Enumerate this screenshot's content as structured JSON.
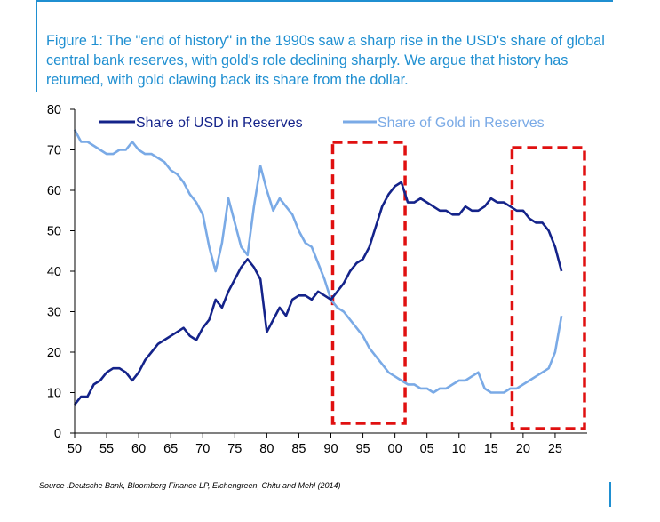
{
  "title": "Figure 1: The \"end of history\" in the 1990s saw a sharp rise in the USD's share of global central bank reserves, with gold's role declining sharply. We argue that history has returned, with gold clawing back its share from the dollar.",
  "source": "Source :Deutsche Bank, Bloomberg Finance LP, Eichengreen, Chitu and Mehl (2014)",
  "colors": {
    "title": "#1f8fd1",
    "usd": "#14238a",
    "gold": "#7aaae6",
    "highlight": "#e01010"
  },
  "chart_data": {
    "type": "line",
    "xlim": [
      1950,
      2030
    ],
    "ylim": [
      0,
      80
    ],
    "x_ticks": [
      1950,
      1955,
      1960,
      1965,
      1970,
      1975,
      1980,
      1985,
      1990,
      1995,
      2000,
      2005,
      2010,
      2015,
      2020,
      2025
    ],
    "x_tick_labels": [
      "50",
      "55",
      "60",
      "65",
      "70",
      "75",
      "80",
      "85",
      "90",
      "95",
      "00",
      "05",
      "10",
      "15",
      "20",
      "25"
    ],
    "y_ticks": [
      0,
      10,
      20,
      30,
      40,
      50,
      60,
      70,
      80
    ],
    "y_tick_labels": [
      "0",
      "10",
      "20",
      "30",
      "40",
      "50",
      "60",
      "70",
      "80"
    ],
    "grid": false,
    "legend_position": "top",
    "highlight_periods": [
      [
        1990,
        2002
      ],
      [
        2018,
        2030
      ]
    ],
    "series": [
      {
        "name": "Share of USD in Reserves",
        "x": [
          1950,
          1951,
          1952,
          1953,
          1954,
          1955,
          1956,
          1957,
          1958,
          1959,
          1960,
          1961,
          1962,
          1963,
          1964,
          1965,
          1966,
          1967,
          1968,
          1969,
          1970,
          1971,
          1972,
          1973,
          1974,
          1975,
          1976,
          1977,
          1978,
          1979,
          1980,
          1981,
          1982,
          1983,
          1984,
          1985,
          1986,
          1987,
          1988,
          1989,
          1990,
          1991,
          1992,
          1993,
          1994,
          1995,
          1996,
          1997,
          1998,
          1999,
          2000,
          2001,
          2002,
          2003,
          2004,
          2005,
          2006,
          2007,
          2008,
          2009,
          2010,
          2011,
          2012,
          2013,
          2014,
          2015,
          2016,
          2017,
          2018,
          2019,
          2020,
          2021,
          2022,
          2023,
          2024,
          2025,
          2026
        ],
        "values": [
          7,
          9,
          9,
          12,
          13,
          15,
          16,
          16,
          15,
          13,
          15,
          18,
          20,
          22,
          23,
          24,
          25,
          26,
          24,
          23,
          26,
          28,
          33,
          31,
          35,
          38,
          41,
          43,
          41,
          38,
          25,
          28,
          31,
          29,
          33,
          34,
          34,
          33,
          35,
          34,
          33,
          35,
          37,
          40,
          42,
          43,
          46,
          51,
          56,
          59,
          61,
          62,
          57,
          57,
          58,
          57,
          56,
          55,
          55,
          54,
          54,
          56,
          55,
          55,
          56,
          58,
          57,
          57,
          56,
          55,
          55,
          53,
          52,
          52,
          50,
          46,
          40
        ]
      },
      {
        "name": "Share of Gold in Reserves",
        "x": [
          1950,
          1951,
          1952,
          1953,
          1954,
          1955,
          1956,
          1957,
          1958,
          1959,
          1960,
          1961,
          1962,
          1963,
          1964,
          1965,
          1966,
          1967,
          1968,
          1969,
          1970,
          1971,
          1972,
          1973,
          1974,
          1975,
          1976,
          1977,
          1978,
          1979,
          1980,
          1981,
          1982,
          1983,
          1984,
          1985,
          1986,
          1987,
          1988,
          1989,
          1990,
          1991,
          1992,
          1993,
          1994,
          1995,
          1996,
          1997,
          1998,
          1999,
          2000,
          2001,
          2002,
          2003,
          2004,
          2005,
          2006,
          2007,
          2008,
          2009,
          2010,
          2011,
          2012,
          2013,
          2014,
          2015,
          2016,
          2017,
          2018,
          2019,
          2020,
          2021,
          2022,
          2023,
          2024,
          2025,
          2026
        ],
        "values": [
          75,
          72,
          72,
          71,
          70,
          69,
          69,
          70,
          70,
          72,
          70,
          69,
          69,
          68,
          67,
          65,
          64,
          62,
          59,
          57,
          54,
          46,
          40,
          47,
          58,
          52,
          46,
          44,
          56,
          66,
          60,
          55,
          58,
          56,
          54,
          50,
          47,
          46,
          42,
          38,
          33,
          31,
          30,
          28,
          26,
          24,
          21,
          19,
          17,
          15,
          14,
          13,
          12,
          12,
          11,
          11,
          10,
          11,
          11,
          12,
          13,
          13,
          14,
          15,
          11,
          10,
          10,
          10,
          11,
          11,
          12,
          13,
          14,
          15,
          16,
          20,
          29
        ]
      }
    ]
  }
}
